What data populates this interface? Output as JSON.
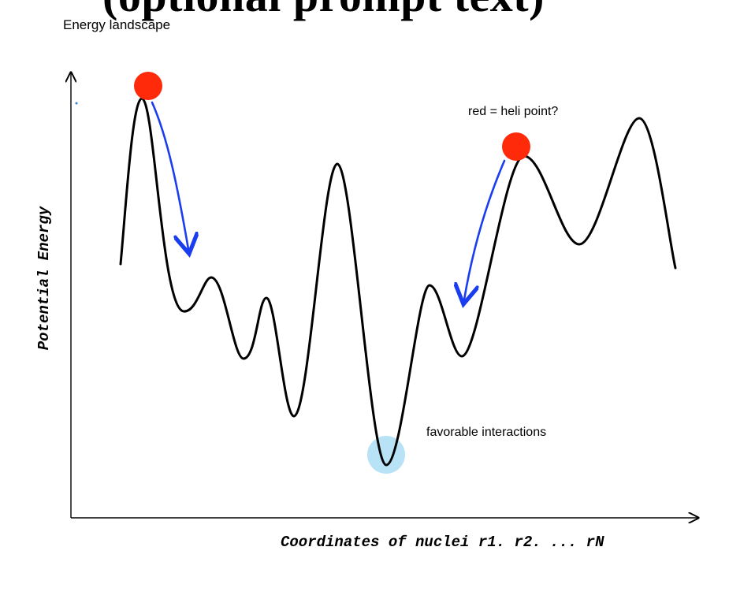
{
  "header": {
    "cut_title": "(optional prompt text)"
  },
  "diagram": {
    "title": "Energy landscape",
    "y_axis_label": "Potential Energy",
    "x_axis_label": "Coordinates of nuclei r1. r2. ... rN",
    "annotation_red": "red = heli point?",
    "annotation_favorable": "favorable interactions",
    "colors": {
      "curve": "#000000",
      "axes": "#000000",
      "marker": "#ff2a0a",
      "arrow": "#1b3df0",
      "highlight": "#b8e2f6"
    }
  }
}
